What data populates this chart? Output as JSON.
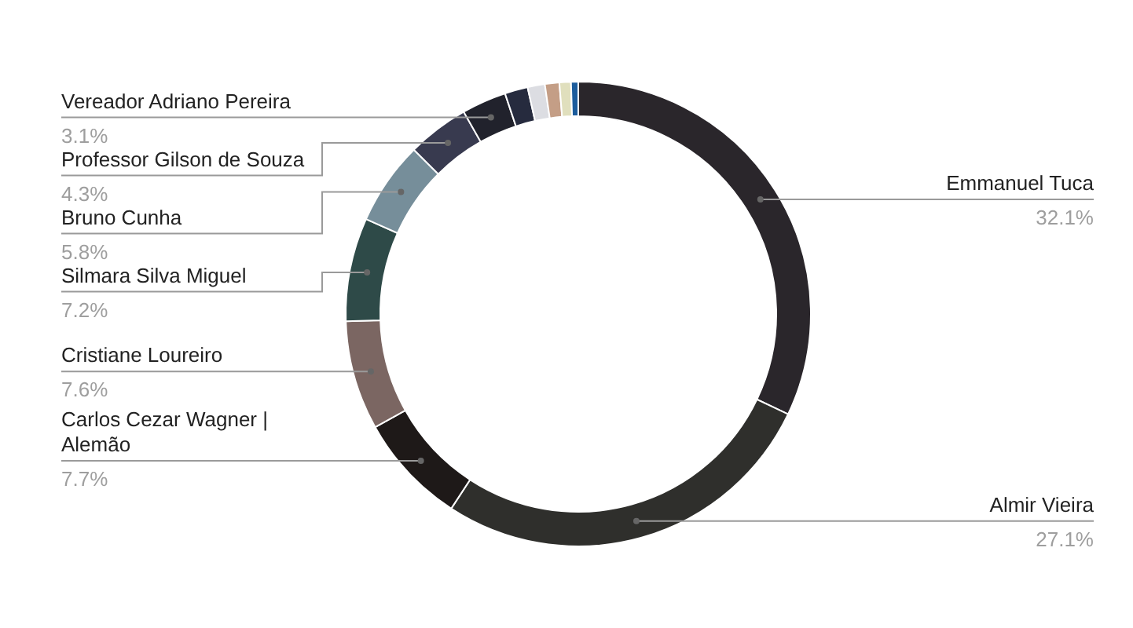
{
  "chart_data": {
    "type": "donut",
    "categories": [
      "Emmanuel Tuca",
      "Almir Vieira",
      "Carlos Cezar Wagner | Alemão",
      "Cristiane Loureiro",
      "Silmara Silva Miguel",
      "Bruno Cunha",
      "Professor Gilson de Souza",
      "Vereador Adriano Pereira",
      null,
      null,
      null,
      null,
      null
    ],
    "values": [
      32.1,
      27.1,
      7.7,
      7.6,
      7.2,
      5.8,
      4.3,
      3.1,
      1.6,
      1.2,
      1.0,
      0.8,
      0.5
    ],
    "value_labels": [
      "32.1%",
      "27.1%",
      "7.7%",
      "7.6%",
      "7.2%",
      "5.8%",
      "4.3%",
      "3.1%",
      null,
      null,
      null,
      null,
      null
    ],
    "colors": [
      "#2a262b",
      "#2f2f2c",
      "#1e1918",
      "#7b6662",
      "#2e4a48",
      "#768e9a",
      "#383a4f",
      "#21222c",
      "#262b3e",
      "#dcdde2",
      "#c49e86",
      "#e0dfbd",
      "#1c5c9c"
    ]
  }
}
